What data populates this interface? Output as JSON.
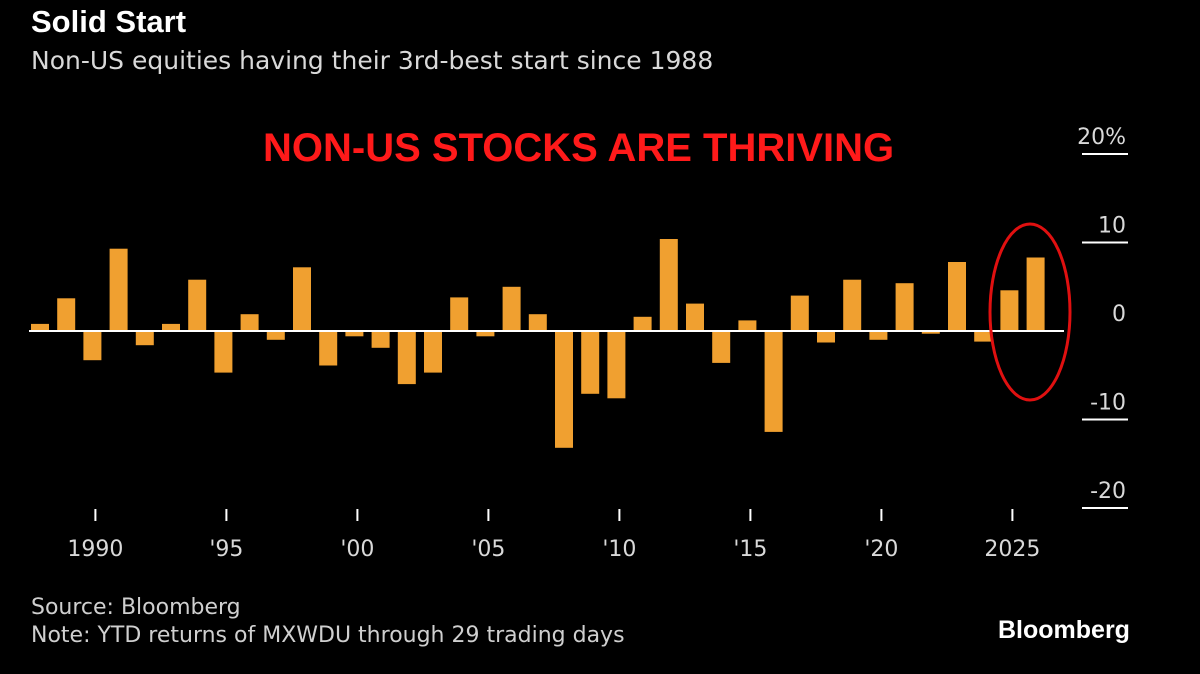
{
  "header": {
    "title": "Solid Start",
    "subtitle": "Non-US equities having their 3rd-best start since 1988"
  },
  "annotation": {
    "text": "NON-US STOCKS ARE THRIVING",
    "color": "#ff1a1a",
    "highlight_target": "2025–2026 bars"
  },
  "footer": {
    "source": "Source: Bloomberg",
    "note": "Note: YTD returns of MXWDU through 29 trading days",
    "brand": "Bloomberg"
  },
  "colors": {
    "background": "#000000",
    "bar": "#f0a030",
    "annotation": "#ff1a1a",
    "text": "#ffffff"
  },
  "chart_data": {
    "type": "bar",
    "title": "Solid Start",
    "subtitle": "Non-US equities having their 3rd-best start since 1988",
    "xlabel": "",
    "ylabel": "",
    "ylim": [
      -20,
      20
    ],
    "y_ticks": [
      {
        "value": 20,
        "label": "20%"
      },
      {
        "value": 10,
        "label": "10"
      },
      {
        "value": 0,
        "label": "0"
      },
      {
        "value": -10,
        "label": "-10"
      },
      {
        "value": -20,
        "label": "-20"
      }
    ],
    "x_ticks": [
      {
        "year": 1990,
        "label": "1990"
      },
      {
        "year": 1995,
        "label": "'95"
      },
      {
        "year": 2000,
        "label": "'00"
      },
      {
        "year": 2005,
        "label": "'05"
      },
      {
        "year": 2010,
        "label": "'10"
      },
      {
        "year": 2015,
        "label": "'15"
      },
      {
        "year": 2020,
        "label": "'20"
      },
      {
        "year": 2025,
        "label": "2025"
      }
    ],
    "grid": false,
    "legend": "none",
    "axis_position": "right",
    "categories": [
      1988,
      1989,
      1990,
      1991,
      1992,
      1993,
      1994,
      1995,
      1996,
      1997,
      1998,
      1999,
      2000,
      2001,
      2002,
      2003,
      2004,
      2005,
      2006,
      2007,
      2008,
      2009,
      2010,
      2011,
      2012,
      2013,
      2014,
      2015,
      2016,
      2017,
      2018,
      2019,
      2020,
      2021,
      2022,
      2023,
      2024,
      2025,
      2026
    ],
    "values": [
      0.8,
      3.7,
      -3.3,
      9.3,
      -1.6,
      0.8,
      5.8,
      -4.7,
      1.9,
      -1.0,
      7.2,
      -3.9,
      -0.6,
      -1.9,
      -6.0,
      -4.7,
      3.8,
      -0.6,
      5.0,
      1.9,
      -13.2,
      -7.1,
      -7.6,
      1.6,
      10.4,
      3.1,
      -3.6,
      1.2,
      -11.4,
      4.0,
      -1.3,
      5.8,
      -1.0,
      5.4,
      -0.3,
      7.8,
      -1.2,
      4.6,
      8.3
    ]
  }
}
